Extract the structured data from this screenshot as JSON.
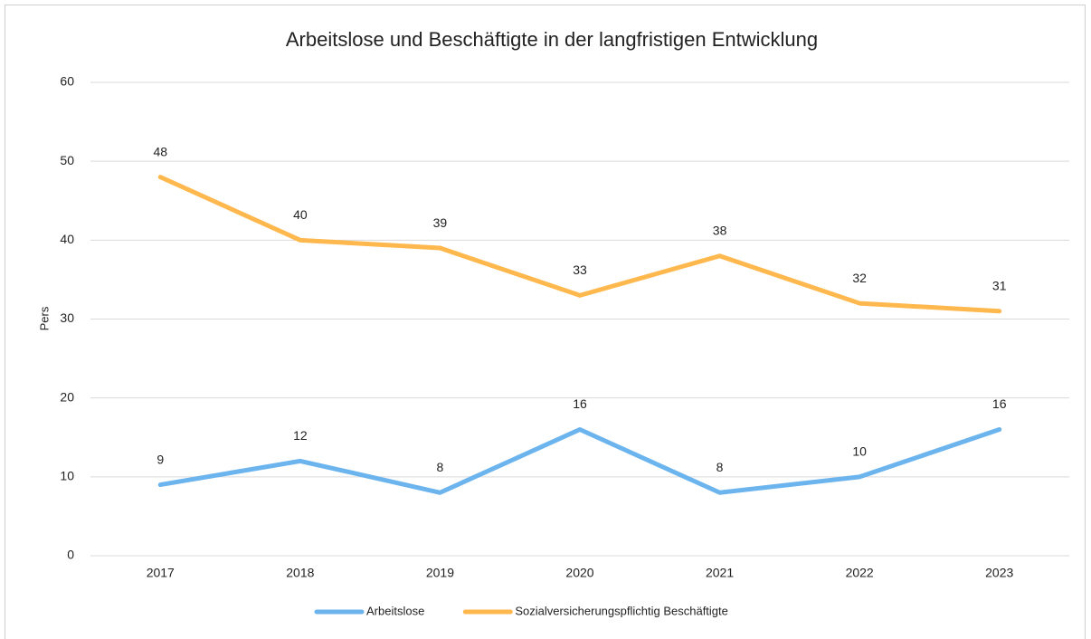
{
  "chart_data": {
    "type": "line",
    "title": "Arbeitslose und Beschäftigte in der langfristigen Entwicklung",
    "y_label": "Pers",
    "categories": [
      "2017",
      "2018",
      "2019",
      "2020",
      "2021",
      "2022",
      "2023"
    ],
    "series": [
      {
        "name": "Arbeitslose",
        "color": "#6cb4ee",
        "values": [
          9,
          12,
          8,
          16,
          8,
          10,
          16
        ]
      },
      {
        "name": "Sozialversicherungspflichtig Beschäftigte",
        "color": "#ffb84d",
        "values": [
          48,
          40,
          39,
          33,
          38,
          32,
          31
        ]
      }
    ],
    "ylim": [
      0,
      60
    ],
    "yticks": [
      0,
      10,
      20,
      30,
      40,
      50,
      60
    ],
    "grid": true,
    "legend": "bottom"
  }
}
